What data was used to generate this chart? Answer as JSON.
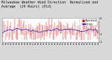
{
  "title": "Milwaukee Weather Wind Direction  Normalized and Average  (24 Hours) (Old)",
  "title_fontsize": 3.5,
  "background_color": "#d8d8d8",
  "plot_bg_color": "#ffffff",
  "ylim": [
    -1,
    5
  ],
  "yticks": [
    -1,
    0,
    1,
    2,
    3,
    4,
    5
  ],
  "ytick_right_labels": [
    "-1",
    "",
    "1",
    "",
    "",
    "",
    "5"
  ],
  "n_points": 96,
  "red_color": "#dd0000",
  "blue_color": "#0000cc",
  "grid_color": "#cccccc",
  "legend_red": "Normalized",
  "legend_blue": "Average",
  "seed": 123
}
